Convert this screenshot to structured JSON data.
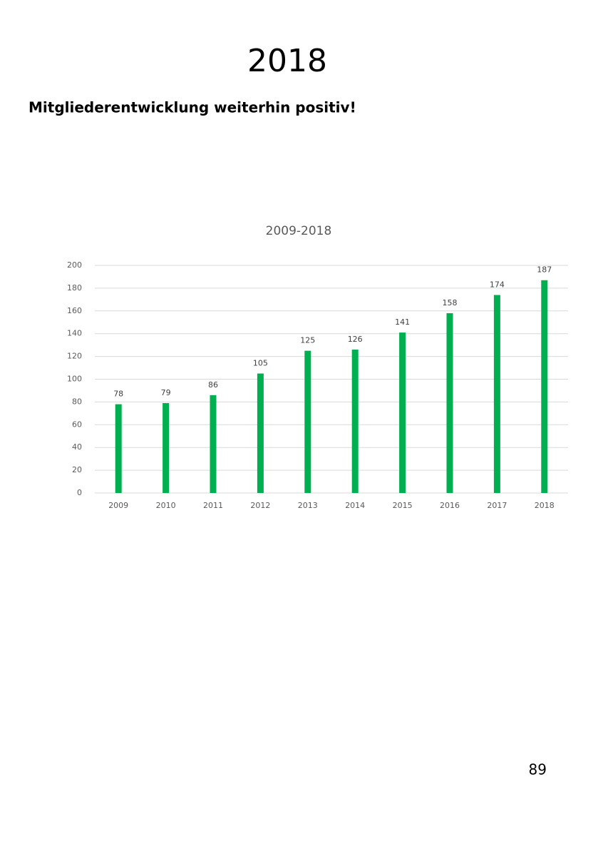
{
  "header": {
    "title": "2018",
    "subtitle": "Mitgliederentwicklung weiterhin positiv!"
  },
  "chart_data": {
    "type": "bar",
    "title": "2009-2018",
    "categories": [
      "2009",
      "2010",
      "2011",
      "2012",
      "2013",
      "2014",
      "2015",
      "2016",
      "2017",
      "2018"
    ],
    "values": [
      78,
      79,
      86,
      105,
      125,
      126,
      141,
      158,
      174,
      187
    ],
    "color": "#00b050",
    "ylim": [
      0,
      200
    ],
    "yticks": [
      0,
      20,
      40,
      60,
      80,
      100,
      120,
      140,
      160,
      180,
      200
    ],
    "grid": true
  },
  "footer": {
    "page_number": "89"
  }
}
